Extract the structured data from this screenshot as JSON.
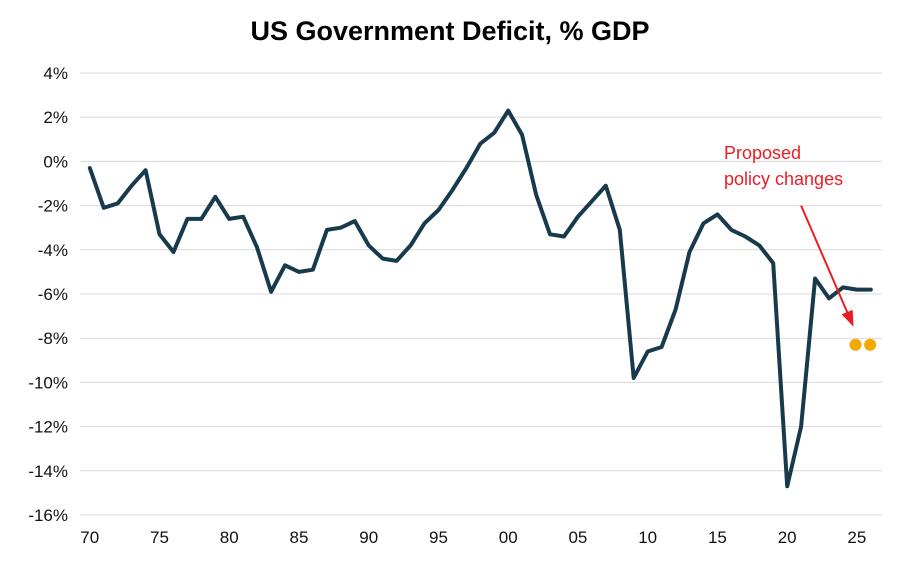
{
  "chart_data": {
    "type": "line",
    "title": "US Government Deficit, % GDP",
    "xlabel": "",
    "ylabel": "",
    "grid": true,
    "legend": "none",
    "xlim": [
      1969.3,
      2026.8
    ],
    "ylim": [
      -16,
      4
    ],
    "x_ticks": [
      1970,
      1975,
      1980,
      1985,
      1990,
      1995,
      2000,
      2005,
      2010,
      2015,
      2020,
      2025
    ],
    "x_tick_labels": [
      "70",
      "75",
      "80",
      "85",
      "90",
      "95",
      "00",
      "05",
      "10",
      "15",
      "20",
      "25"
    ],
    "y_ticks": [
      4,
      2,
      0,
      -2,
      -4,
      -6,
      -8,
      -10,
      -12,
      -14,
      -16
    ],
    "y_tick_labels": [
      "4%",
      "2%",
      "0%",
      "-2%",
      "-4%",
      "-6%",
      "-8%",
      "-10%",
      "-12%",
      "-14%",
      "-16%"
    ],
    "x": [
      1970,
      1971,
      1972,
      1973,
      1974,
      1975,
      1976,
      1977,
      1978,
      1979,
      1980,
      1981,
      1982,
      1983,
      1984,
      1985,
      1986,
      1987,
      1988,
      1989,
      1990,
      1991,
      1992,
      1993,
      1994,
      1995,
      1996,
      1997,
      1998,
      1999,
      2000,
      2001,
      2002,
      2003,
      2004,
      2005,
      2006,
      2007,
      2008,
      2009,
      2010,
      2011,
      2012,
      2013,
      2014,
      2015,
      2016,
      2017,
      2018,
      2019,
      2020,
      2021,
      2022,
      2023,
      2024,
      2025,
      2026
    ],
    "series": [
      {
        "name": "US Government Deficit, % GDP",
        "values": [
          -0.3,
          -2.1,
          -1.9,
          -1.1,
          -0.4,
          -3.3,
          -4.1,
          -2.6,
          -2.6,
          -1.6,
          -2.6,
          -2.5,
          -3.9,
          -5.9,
          -4.7,
          -5.0,
          -4.9,
          -3.1,
          -3.0,
          -2.7,
          -3.8,
          -4.4,
          -4.5,
          -3.8,
          -2.8,
          -2.2,
          -1.3,
          -0.3,
          0.8,
          1.3,
          2.3,
          1.2,
          -1.5,
          -3.3,
          -3.4,
          -2.5,
          -1.8,
          -1.1,
          -3.1,
          -9.8,
          -8.6,
          -8.4,
          -6.7,
          -4.1,
          -2.8,
          -2.4,
          -3.1,
          -3.4,
          -3.8,
          -4.6,
          -14.7,
          -12.0,
          -5.3,
          -6.2,
          -5.7,
          -5.8,
          -5.8
        ]
      }
    ],
    "proposed_points": [
      {
        "x": 2024.9,
        "y": -8.3
      },
      {
        "x": 2025.95,
        "y": -8.3
      }
    ],
    "annotation": {
      "line1": "Proposed",
      "line2": "policy changes",
      "color": "#ec1c24",
      "arrow": {
        "from_x": 2021.0,
        "from_y": -2.0,
        "to_x": 2024.7,
        "to_y": -7.4
      }
    },
    "line_color": "#173b4d",
    "dot_color": "#f2a900",
    "grid_color": "#d9d9d9",
    "background_color": "#ffffff"
  }
}
